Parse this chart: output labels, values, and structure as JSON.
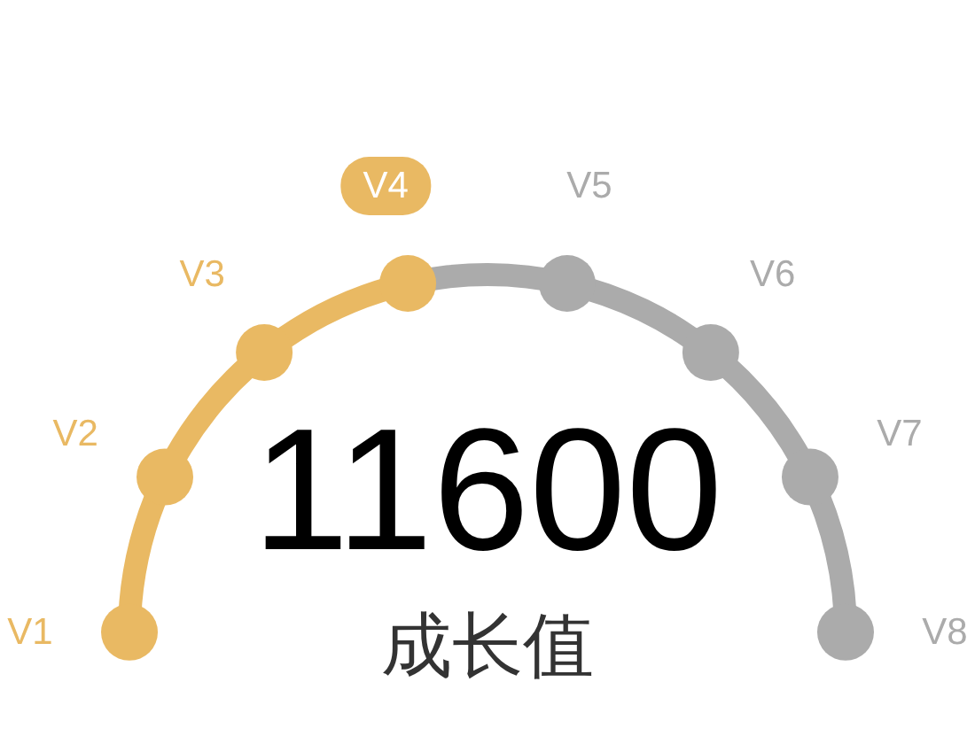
{
  "chart_data": {
    "type": "donut",
    "title": "11600",
    "subtitle": "成长值",
    "categories": [
      null,
      null
    ],
    "values": [
      42.86,
      57.14
    ],
    "colors": [
      "#e9b963",
      "#ababab"
    ],
    "annotations": [
      "V1",
      "V2",
      "V3",
      "V4",
      "V5",
      "V6",
      "V7",
      "V8"
    ]
  }
}
